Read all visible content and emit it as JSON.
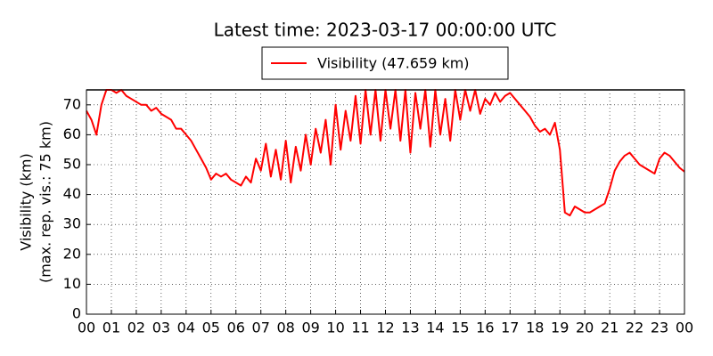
{
  "chart_data": {
    "type": "line",
    "title": "Latest time: 2023-03-17 00:00:00 UTC",
    "ylabel": [
      "Visibility (km)",
      "(max. rep. vis.: 75 km)"
    ],
    "x": [
      0,
      0.2,
      0.4,
      0.6,
      0.8,
      1,
      1.2,
      1.4,
      1.6,
      1.8,
      2,
      2.2,
      2.4,
      2.6,
      2.8,
      3,
      3.2,
      3.4,
      3.6,
      3.8,
      4,
      4.2,
      4.4,
      4.6,
      4.8,
      5,
      5.2,
      5.4,
      5.6,
      5.8,
      6,
      6.2,
      6.4,
      6.6,
      6.8,
      7,
      7.2,
      7.4,
      7.6,
      7.8,
      8,
      8.2,
      8.4,
      8.6,
      8.8,
      9,
      9.2,
      9.4,
      9.6,
      9.8,
      10,
      10.2,
      10.4,
      10.6,
      10.8,
      11,
      11.2,
      11.4,
      11.6,
      11.8,
      12,
      12.2,
      12.4,
      12.6,
      12.8,
      13,
      13.2,
      13.4,
      13.6,
      13.8,
      14,
      14.2,
      14.4,
      14.6,
      14.8,
      15,
      15.2,
      15.4,
      15.6,
      15.8,
      16,
      16.2,
      16.4,
      16.6,
      16.8,
      17,
      17.2,
      17.4,
      17.6,
      17.8,
      18,
      18.2,
      18.4,
      18.6,
      18.8,
      19,
      19.2,
      19.4,
      19.6,
      19.8,
      20,
      20.2,
      20.4,
      20.6,
      20.8,
      21,
      21.2,
      21.4,
      21.6,
      21.8,
      22,
      22.2,
      22.4,
      22.6,
      22.8,
      23,
      23.2,
      23.4,
      23.6,
      23.8,
      24
    ],
    "series": [
      {
        "name": "Visibility (47.659 km)",
        "color": "#ff0000",
        "values": [
          68,
          65,
          60,
          70,
          75,
          75,
          74,
          75,
          73,
          72,
          71,
          70,
          70,
          68,
          69,
          67,
          66,
          65,
          62,
          62,
          60,
          58,
          55,
          52,
          49,
          45,
          47,
          46,
          47,
          45,
          44,
          43,
          46,
          44,
          52,
          48,
          57,
          46,
          55,
          45,
          58,
          44,
          56,
          48,
          60,
          50,
          62,
          54,
          65,
          50,
          70,
          55,
          68,
          58,
          73,
          57,
          75,
          60,
          75,
          58,
          75,
          62,
          75,
          58,
          75,
          54,
          74,
          62,
          75,
          56,
          75,
          60,
          72,
          58,
          75,
          65,
          75,
          68,
          75,
          67,
          72,
          70,
          74,
          71,
          73,
          74,
          72,
          70,
          68,
          66,
          63,
          61,
          62,
          60,
          64,
          55,
          34,
          33,
          36,
          35,
          34,
          34,
          35,
          36,
          37,
          42,
          48,
          51,
          53,
          54,
          52,
          50,
          49,
          48,
          47,
          52,
          54,
          53,
          51,
          49,
          47.659
        ]
      }
    ],
    "xlim": [
      0,
      24
    ],
    "xticks": [
      {
        "value": 0,
        "label": "00"
      },
      {
        "value": 1,
        "label": "01"
      },
      {
        "value": 2,
        "label": "02"
      },
      {
        "value": 3,
        "label": "03"
      },
      {
        "value": 4,
        "label": "04"
      },
      {
        "value": 5,
        "label": "05"
      },
      {
        "value": 6,
        "label": "06"
      },
      {
        "value": 7,
        "label": "07"
      },
      {
        "value": 8,
        "label": "08"
      },
      {
        "value": 9,
        "label": "09"
      },
      {
        "value": 10,
        "label": "10"
      },
      {
        "value": 11,
        "label": "11"
      },
      {
        "value": 12,
        "label": "12"
      },
      {
        "value": 13,
        "label": "13"
      },
      {
        "value": 14,
        "label": "14"
      },
      {
        "value": 15,
        "label": "15"
      },
      {
        "value": 16,
        "label": "16"
      },
      {
        "value": 17,
        "label": "17"
      },
      {
        "value": 18,
        "label": "18"
      },
      {
        "value": 19,
        "label": "19"
      },
      {
        "value": 20,
        "label": "20"
      },
      {
        "value": 21,
        "label": "21"
      },
      {
        "value": 22,
        "label": "22"
      },
      {
        "value": 23,
        "label": "23"
      },
      {
        "value": 24,
        "label": "00"
      }
    ],
    "ylim": [
      0,
      75
    ],
    "yticks": [
      0,
      10,
      20,
      30,
      40,
      50,
      60,
      70
    ],
    "hline": {
      "value": 75,
      "color": "#808080"
    },
    "grid": true
  }
}
